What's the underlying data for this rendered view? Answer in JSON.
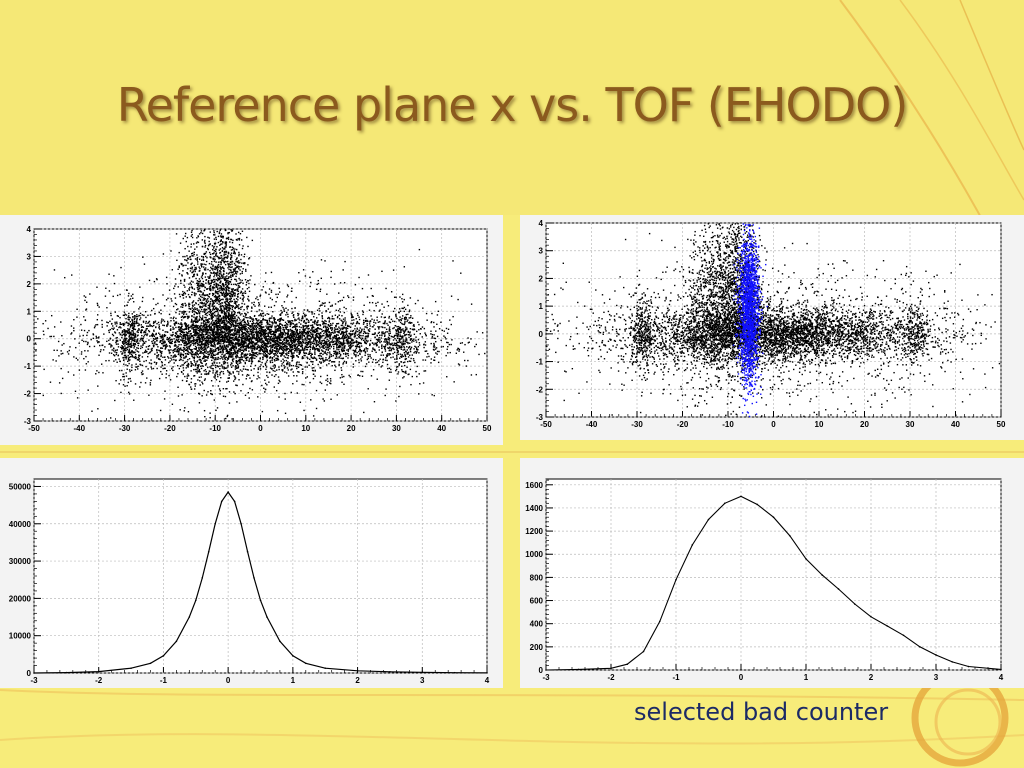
{
  "slide": {
    "title": "Reference plane  x vs. TOF (EHODO)",
    "caption": "selected bad counter"
  },
  "colors": {
    "background": "#f7ec7a",
    "title": "#8b5a1e",
    "caption": "#1c2a66",
    "points": "#000000",
    "highlight": "#1010ff",
    "frame": "#f3f3f3"
  },
  "chart_data": [
    {
      "type": "scatter",
      "xlim": [
        -50,
        50
      ],
      "ylim": [
        -3,
        4
      ],
      "x_ticks": [
        -50,
        -40,
        -30,
        -20,
        -10,
        0,
        10,
        20,
        30,
        40,
        50
      ],
      "y_ticks": [
        -3,
        -2,
        -1,
        0,
        1,
        2,
        3,
        4
      ],
      "grid": true,
      "series": [
        {
          "color": "#000000",
          "clusters": [
            {
              "x": 0,
              "y": 0,
              "sx": 16,
              "sy": 0.45,
              "count": 3800
            },
            {
              "x": -8,
              "y": 1.6,
              "sx": 2.5,
              "sy": 1.5,
              "count": 1200
            },
            {
              "x": -14,
              "y": 1.2,
              "sx": 2.5,
              "sy": 1.6,
              "count": 700
            },
            {
              "x": -29,
              "y": 0,
              "sx": 1.5,
              "sy": 0.7,
              "count": 300
            },
            {
              "x": 31,
              "y": 0,
              "sx": 1.5,
              "sy": 0.6,
              "count": 220
            },
            {
              "x": 0,
              "y": 0,
              "sx": 22,
              "sy": 1.2,
              "count": 1400
            }
          ]
        }
      ]
    },
    {
      "type": "scatter",
      "xlim": [
        -50,
        50
      ],
      "ylim": [
        -3,
        4
      ],
      "x_ticks": [
        -50,
        -40,
        -30,
        -20,
        -10,
        0,
        10,
        20,
        30,
        40,
        50
      ],
      "y_ticks": [
        -3,
        -2,
        -1,
        0,
        1,
        2,
        3,
        4
      ],
      "grid": true,
      "series": [
        {
          "color": "#000000",
          "clusters": [
            {
              "x": 0,
              "y": 0,
              "sx": 16,
              "sy": 0.45,
              "count": 3800
            },
            {
              "x": -8,
              "y": 1.6,
              "sx": 2.5,
              "sy": 1.5,
              "count": 1200
            },
            {
              "x": -14,
              "y": 1.2,
              "sx": 2.5,
              "sy": 1.6,
              "count": 700
            },
            {
              "x": -29,
              "y": 0,
              "sx": 1.5,
              "sy": 0.7,
              "count": 300
            },
            {
              "x": 31,
              "y": 0,
              "sx": 1.5,
              "sy": 0.6,
              "count": 220
            },
            {
              "x": 0,
              "y": 0,
              "sx": 22,
              "sy": 1.2,
              "count": 1400
            }
          ]
        },
        {
          "color": "#1010ff",
          "clusters": [
            {
              "x": -5.5,
              "y": 0.9,
              "sx": 1.1,
              "sy": 1.35,
              "count": 1700
            }
          ]
        }
      ]
    },
    {
      "type": "line",
      "xlim": [
        -3,
        4
      ],
      "ylim": [
        0,
        52000
      ],
      "x_ticks": [
        -3,
        -2,
        -1,
        0,
        1,
        2,
        3,
        4
      ],
      "y_ticks": [
        0,
        10000,
        20000,
        30000,
        40000,
        50000
      ],
      "grid": true,
      "x": [
        -3,
        -2.5,
        -2,
        -1.5,
        -1.2,
        -1,
        -0.8,
        -0.6,
        -0.5,
        -0.4,
        -0.3,
        -0.2,
        -0.1,
        0,
        0.1,
        0.2,
        0.3,
        0.4,
        0.5,
        0.6,
        0.8,
        1,
        1.2,
        1.5,
        2,
        2.5,
        3,
        3.5,
        4
      ],
      "y": [
        0,
        120,
        380,
        1300,
        2600,
        4600,
        8500,
        15000,
        19500,
        25500,
        32500,
        40000,
        46000,
        48500,
        46000,
        40000,
        32500,
        25500,
        19500,
        15000,
        8500,
        4600,
        2600,
        1300,
        600,
        320,
        180,
        90,
        40
      ]
    },
    {
      "type": "line",
      "xlim": [
        -3,
        4
      ],
      "ylim": [
        0,
        1650
      ],
      "x_ticks": [
        -3,
        -2,
        -1,
        0,
        1,
        2,
        3,
        4
      ],
      "y_ticks": [
        0,
        200,
        400,
        600,
        800,
        1000,
        1200,
        1400,
        1600
      ],
      "grid": true,
      "x": [
        -3,
        -2.5,
        -2,
        -1.75,
        -1.5,
        -1.25,
        -1,
        -0.75,
        -0.5,
        -0.25,
        0,
        0.25,
        0.5,
        0.75,
        1,
        1.25,
        1.5,
        1.75,
        2,
        2.25,
        2.5,
        2.75,
        3,
        3.25,
        3.5,
        4
      ],
      "y": [
        0,
        5,
        15,
        50,
        160,
        420,
        780,
        1080,
        1300,
        1440,
        1500,
        1430,
        1320,
        1160,
        960,
        820,
        700,
        570,
        460,
        380,
        300,
        200,
        130,
        70,
        30,
        5
      ]
    }
  ]
}
